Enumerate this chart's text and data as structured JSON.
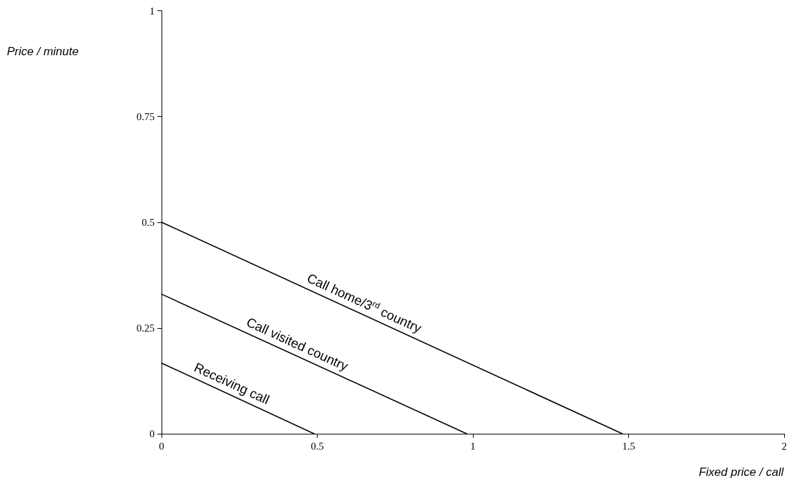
{
  "chart_data": {
    "type": "line",
    "xlabel": "Fixed price / call",
    "ylabel": "Price / minute",
    "xlim": [
      0,
      2
    ],
    "xticks": [
      0,
      0.5,
      1,
      1.5,
      2
    ],
    "ylim": [
      0,
      1
    ],
    "yticks": [
      0,
      0.25,
      0.5,
      0.75,
      1
    ],
    "grid": false,
    "legend": false,
    "marker": "none",
    "line_style": "solid",
    "series": [
      {
        "name": "Call home/3$^{rd}$ country",
        "color": "#000000",
        "x": [
          0,
          1.48
        ],
        "values": [
          0.5,
          0
        ]
      },
      {
        "name": "Call visited country",
        "color": "#000000",
        "x": [
          0,
          0.98
        ],
        "values": [
          0.33,
          0
        ]
      },
      {
        "name": "Receiving call",
        "color": "#000000",
        "x": [
          0,
          0.49
        ],
        "values": [
          0.167,
          0
        ]
      }
    ]
  }
}
